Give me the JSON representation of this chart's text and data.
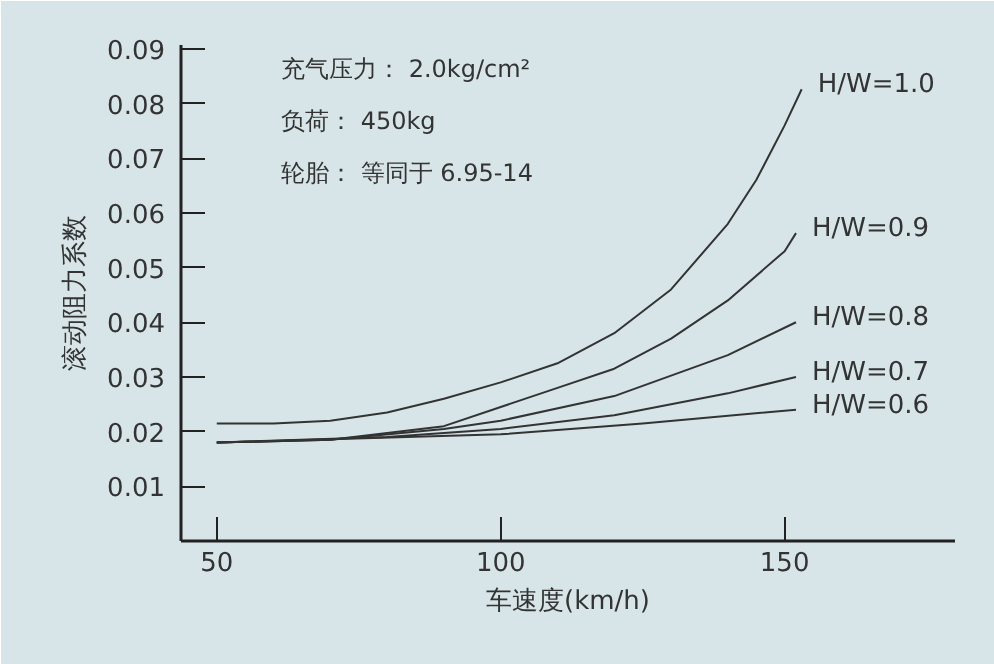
{
  "chart_data": {
    "type": "line",
    "xlabel": "车速度(km/h)",
    "ylabel": "滚动阻力系数",
    "xlim": [
      43.7,
      180
    ],
    "ylim": [
      0,
      0.0907
    ],
    "xticks": [
      50,
      100,
      150
    ],
    "yticks": [
      0.01,
      0.02,
      0.03,
      0.04,
      0.05,
      0.06,
      0.07,
      0.08,
      0.09
    ],
    "grid": false,
    "legend": false,
    "marker": "none",
    "line_style": "solid",
    "annotations": [
      "充气压力： 2.0kg/cm²",
      "负荷： 450kg",
      "轮胎： 等同于 6.95-14"
    ],
    "series": [
      {
        "name": "H/W=1.0",
        "color": "#333333",
        "x": [
          50,
          60,
          70,
          80,
          90,
          100,
          110,
          120,
          130,
          140,
          145,
          150,
          153
        ],
        "values": [
          0.0215,
          0.0215,
          0.022,
          0.0235,
          0.026,
          0.029,
          0.0325,
          0.038,
          0.046,
          0.058,
          0.066,
          0.076,
          0.0826
        ]
      },
      {
        "name": "H/W=0.9",
        "color": "#333333",
        "x": [
          50,
          70,
          90,
          100,
          110,
          120,
          130,
          140,
          150,
          152
        ],
        "values": [
          0.018,
          0.0185,
          0.021,
          0.0245,
          0.028,
          0.0315,
          0.037,
          0.044,
          0.053,
          0.0563
        ]
      },
      {
        "name": "H/W=0.8",
        "color": "#333333",
        "x": [
          50,
          70,
          90,
          100,
          120,
          140,
          152
        ],
        "values": [
          0.018,
          0.0185,
          0.0205,
          0.022,
          0.0265,
          0.034,
          0.04
        ]
      },
      {
        "name": "H/W=0.7",
        "color": "#333333",
        "x": [
          50,
          80,
          100,
          120,
          140,
          152
        ],
        "values": [
          0.018,
          0.019,
          0.0205,
          0.023,
          0.027,
          0.03
        ]
      },
      {
        "name": "H/W=0.6",
        "color": "#333333",
        "x": [
          50,
          100,
          125,
          152
        ],
        "values": [
          0.018,
          0.0195,
          0.0215,
          0.024
        ]
      }
    ]
  }
}
